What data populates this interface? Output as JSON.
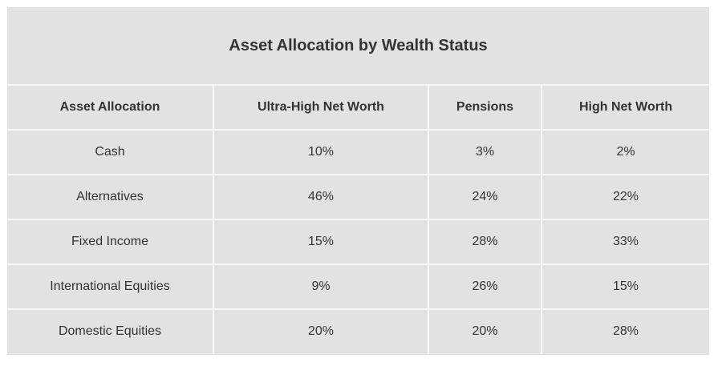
{
  "table": {
    "title": "Asset Allocation by Wealth Status",
    "headers": [
      "Asset Allocation",
      "Ultra-High Net Worth",
      "Pensions",
      "High Net Worth"
    ],
    "rows": [
      [
        "Cash",
        "10%",
        "3%",
        "2%"
      ],
      [
        "Alternatives",
        "46%",
        "24%",
        "22%"
      ],
      [
        "Fixed Income",
        "15%",
        "28%",
        "33%"
      ],
      [
        "International Equities",
        "9%",
        "26%",
        "15%"
      ],
      [
        "Domestic Equities",
        "20%",
        "20%",
        "28%"
      ]
    ]
  },
  "colors": {
    "background": "#e2e2e2",
    "grid_lines": "#f6f6f6",
    "text": "#333333"
  }
}
